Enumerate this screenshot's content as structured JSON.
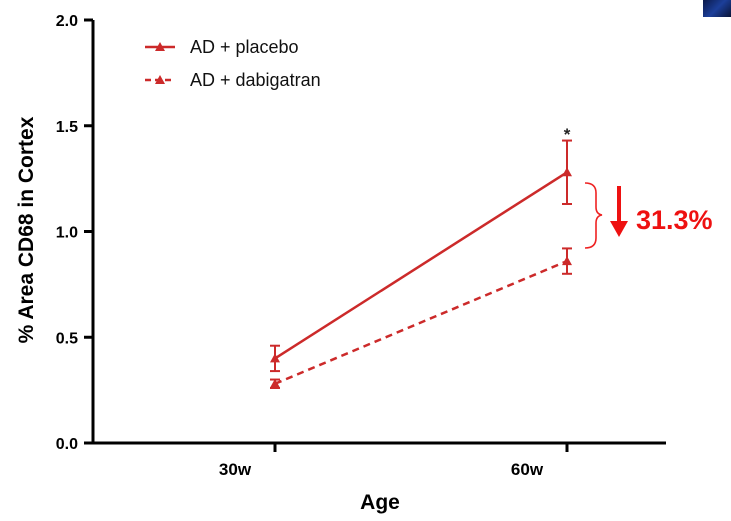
{
  "chart_data": {
    "type": "line",
    "xlabel": "Age",
    "ylabel": "% Area CD68 in Cortex",
    "categories": [
      "30w",
      "60w"
    ],
    "ylim": [
      0,
      2
    ],
    "yticks": [
      "0.0",
      "0.5",
      "1.0",
      "1.5",
      "2.0"
    ],
    "ytick_values": [
      0,
      0.5,
      1.0,
      1.5,
      2.0
    ],
    "grid": false,
    "legend_position": "top-left",
    "series": [
      {
        "name": "AD + placebo",
        "values": [
          0.4,
          1.28
        ],
        "error": [
          0.06,
          0.15
        ],
        "line_style": "solid",
        "color": "#cc2a2a"
      },
      {
        "name": "AD + dabigatran",
        "values": [
          0.28,
          0.86
        ],
        "error": [
          0.02,
          0.06
        ],
        "line_style": "dashed",
        "color": "#cc2a2a"
      }
    ],
    "annotations": {
      "significance_marker": "*",
      "reduction_label": "31.3%",
      "reduction_color": "#ee1111"
    }
  }
}
